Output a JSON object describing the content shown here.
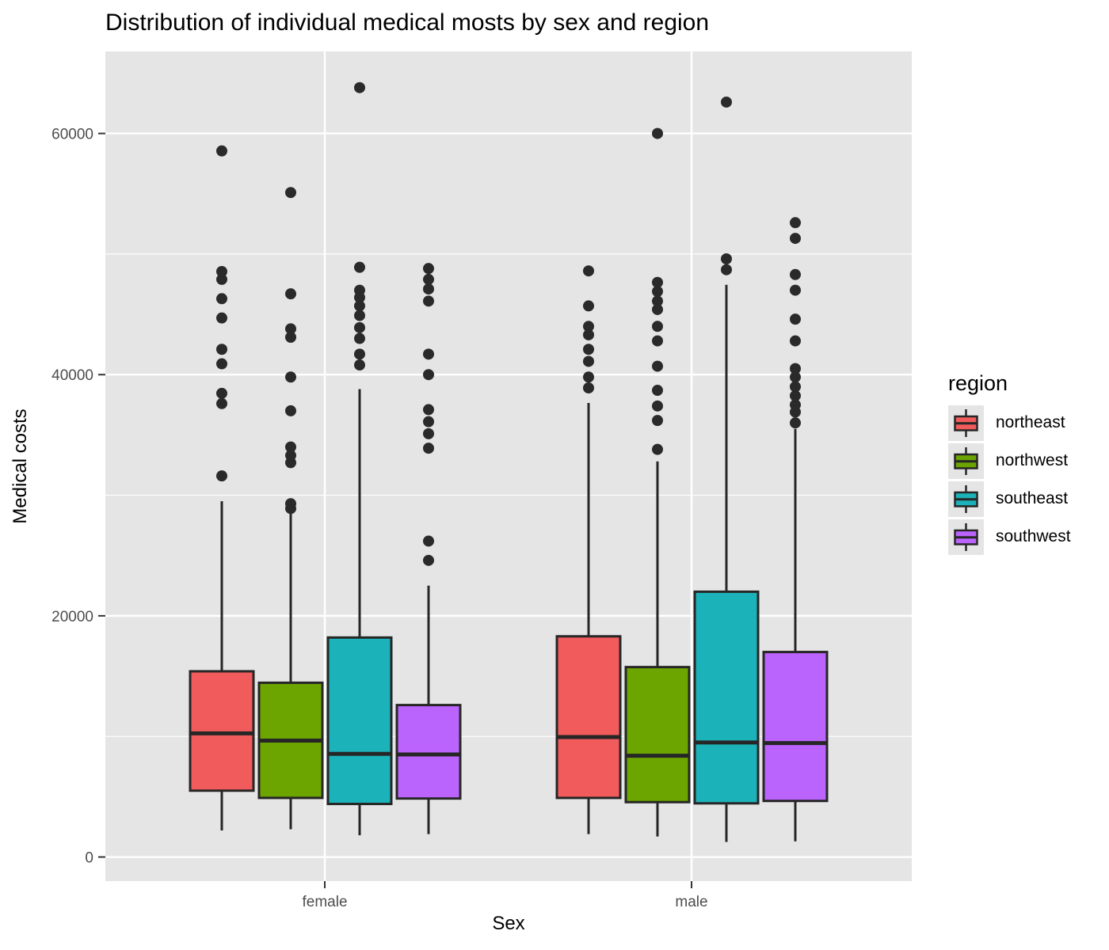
{
  "title": "Distribution of individual medical mosts by sex and region",
  "chart_data": {
    "type": "boxplot",
    "title": "Distribution of individual medical mosts by sex and region",
    "xlabel": "Sex",
    "ylabel": "Medical costs",
    "categories": [
      "female",
      "male"
    ],
    "legend": {
      "title": "region",
      "position": "right",
      "items": [
        "northeast",
        "northwest",
        "southeast",
        "southwest"
      ]
    },
    "colors": {
      "northeast": "#F15B5B",
      "northwest": "#6CA400",
      "southeast": "#1CB2B9",
      "southwest": "#BB63FD"
    },
    "panel_background": "#E5E5E5",
    "gridline_color": "#FFFFFF",
    "box_outline_color": "#262626",
    "outlier_color": "#2A2A2A",
    "tick_label_color": "#4D4D4D",
    "grid": true,
    "y_ticks": [
      0,
      20000,
      40000,
      60000
    ],
    "y_minor_ticks": [
      10000,
      30000,
      50000
    ],
    "ylim": [
      -2000,
      66800
    ],
    "series": [
      {
        "sex": "female",
        "region": "northeast",
        "whisker_low": 2200,
        "q1": 5500,
        "median": 10250,
        "q3": 15400,
        "whisker_high": 29500,
        "outliers": [
          31600,
          37600,
          38450,
          40900,
          42100,
          44700,
          46300,
          47900,
          48550,
          58550
        ]
      },
      {
        "sex": "female",
        "region": "northwest",
        "whisker_low": 2300,
        "q1": 4900,
        "median": 9650,
        "q3": 14450,
        "whisker_high": 28600,
        "outliers": [
          28900,
          29300,
          32700,
          33300,
          34000,
          37000,
          39800,
          43100,
          43800,
          46700,
          55100
        ]
      },
      {
        "sex": "female",
        "region": "southeast",
        "whisker_low": 1800,
        "q1": 4400,
        "median": 8550,
        "q3": 18200,
        "whisker_high": 38800,
        "outliers": [
          40800,
          41700,
          43000,
          43900,
          44900,
          45700,
          46400,
          47000,
          48900,
          63800
        ]
      },
      {
        "sex": "female",
        "region": "southwest",
        "whisker_low": 1900,
        "q1": 4850,
        "median": 8500,
        "q3": 12600,
        "whisker_high": 22500,
        "outliers": [
          24600,
          26200,
          33900,
          35100,
          36100,
          37100,
          40000,
          41700,
          46100,
          47100,
          47900,
          48800
        ]
      },
      {
        "sex": "male",
        "region": "northeast",
        "whisker_low": 1900,
        "q1": 4900,
        "median": 9950,
        "q3": 18300,
        "whisker_high": 37650,
        "outliers": [
          38900,
          39800,
          41100,
          42100,
          43300,
          44000,
          45700,
          48600
        ]
      },
      {
        "sex": "male",
        "region": "northwest",
        "whisker_low": 1700,
        "q1": 4550,
        "median": 8400,
        "q3": 15750,
        "whisker_high": 32800,
        "outliers": [
          33800,
          36200,
          37400,
          38700,
          40700,
          42800,
          44000,
          45400,
          46100,
          46900,
          47650,
          60000
        ]
      },
      {
        "sex": "male",
        "region": "southeast",
        "whisker_low": 1250,
        "q1": 4450,
        "median": 9500,
        "q3": 22000,
        "whisker_high": 47450,
        "outliers": [
          48700,
          49600,
          62600
        ]
      },
      {
        "sex": "male",
        "region": "southwest",
        "whisker_low": 1300,
        "q1": 4650,
        "median": 9450,
        "q3": 17000,
        "whisker_high": 35500,
        "outliers": [
          36000,
          36900,
          37500,
          38250,
          39000,
          39800,
          40500,
          42800,
          44600,
          47000,
          48300,
          51300,
          52600
        ]
      }
    ]
  }
}
